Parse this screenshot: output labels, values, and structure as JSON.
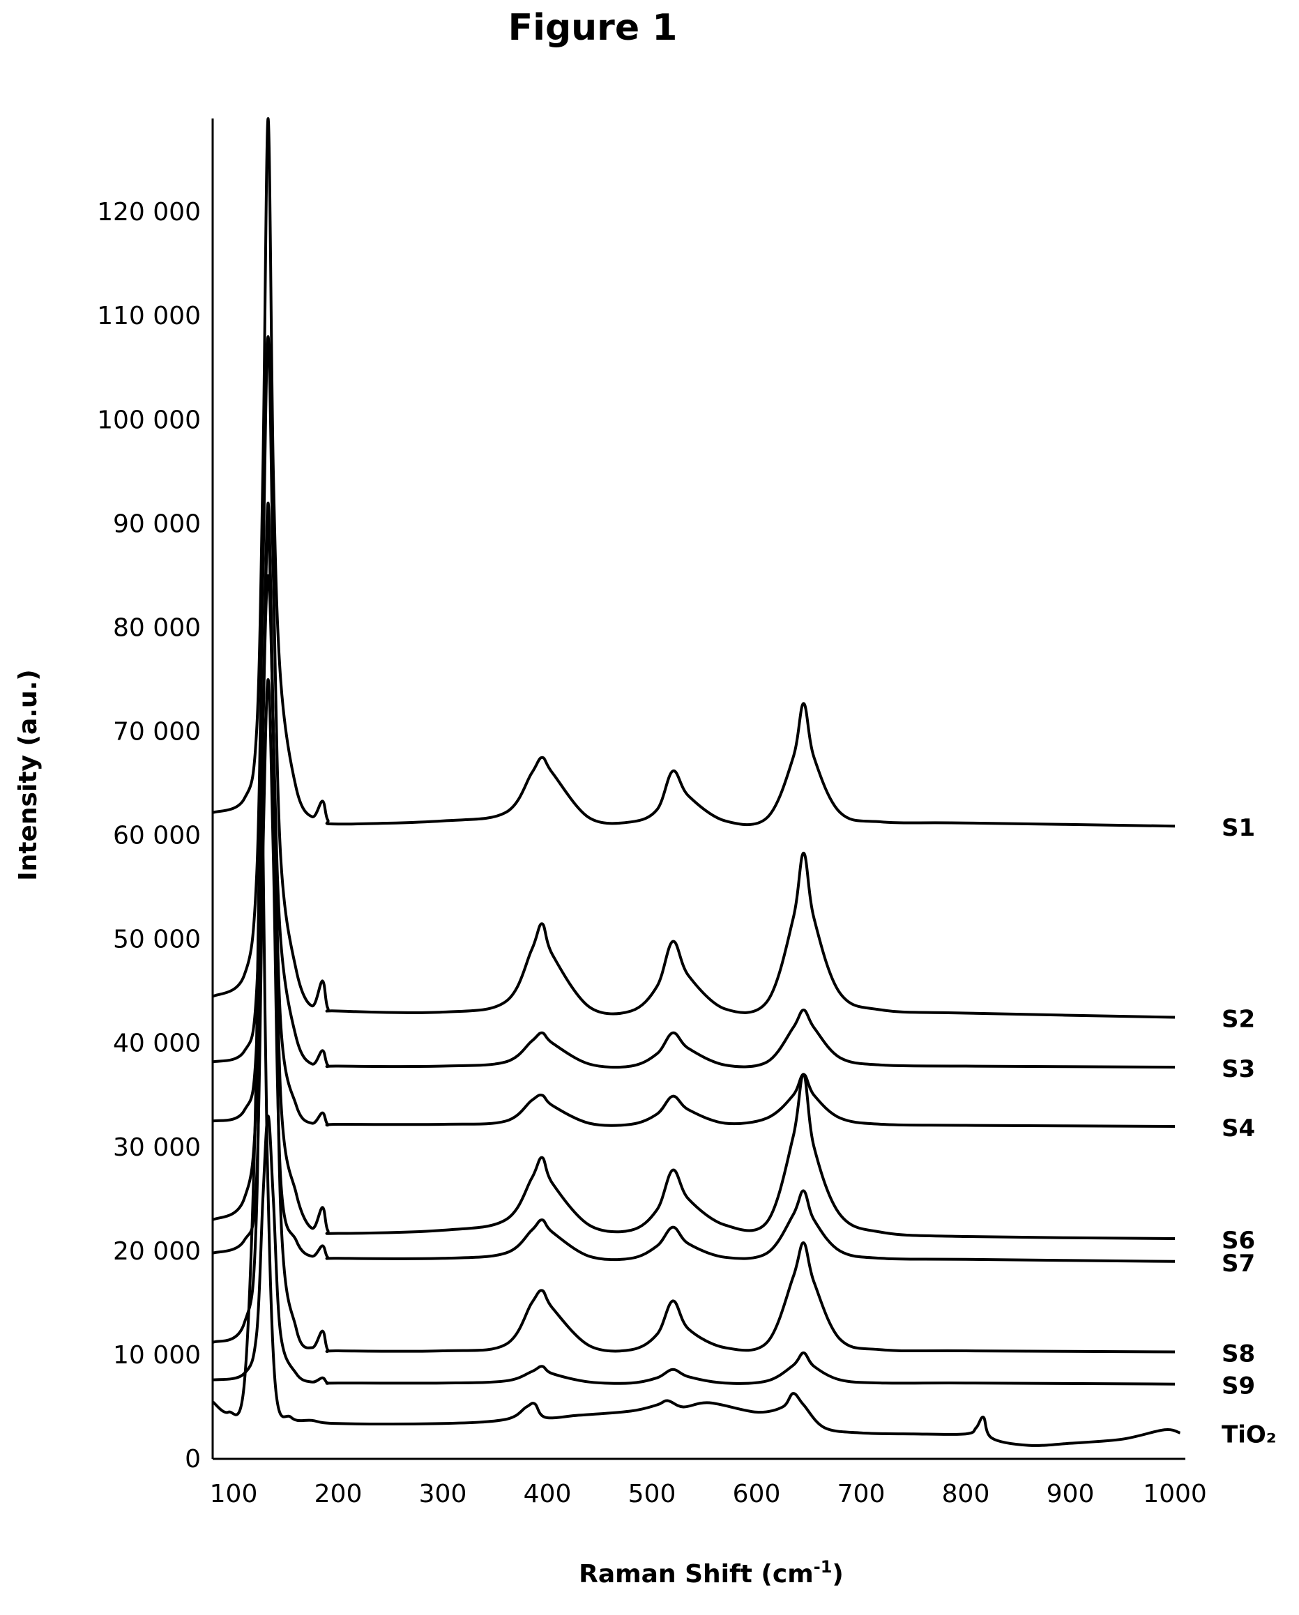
{
  "figure_title": "Figure 1",
  "chart_data": {
    "type": "line",
    "title": "Figure 1",
    "xlabel": "Raman Shift (cm",
    "xlabel_sup": "-1",
    "xlabel_end": ")",
    "ylabel": "Intensity (a.u.)",
    "xlim": [
      80,
      1010
    ],
    "ylim": [
      0,
      129000
    ],
    "x_ticks": [
      100,
      200,
      300,
      400,
      500,
      600,
      700,
      800,
      900,
      1000
    ],
    "x_tick_labels": [
      "100",
      "200",
      "300",
      "400",
      "500",
      "600",
      "700",
      "800",
      "900",
      "1000"
    ],
    "y_ticks": [
      0,
      10000,
      20000,
      30000,
      40000,
      50000,
      60000,
      70000,
      80000,
      90000,
      100000,
      110000,
      120000
    ],
    "y_tick_labels": [
      "0",
      "10 000",
      "20 000",
      "30 000",
      "40 000",
      "50 000",
      "60 000",
      "70 000",
      "80 000",
      "90 000",
      "100 000",
      "110 000",
      "120 000"
    ],
    "grid": false,
    "legend": "labels at right end of each trace",
    "line_color": "#000000",
    "series": [
      {
        "name": "S1",
        "x": [
          80,
          110,
          122,
          128,
          133,
          138,
          145,
          160,
          175,
          185,
          190,
          200,
          300,
          360,
          385,
          395,
          405,
          440,
          480,
          505,
          520,
          535,
          570,
          610,
          635,
          645,
          655,
          680,
          720,
          800,
          1000
        ],
        "y": [
          62200,
          63500,
          70000,
          95000,
          129000,
          95000,
          75000,
          64500,
          61800,
          63300,
          61500,
          61100,
          61400,
          62200,
          66000,
          67500,
          66000,
          61700,
          61300,
          62500,
          66200,
          63800,
          61400,
          61700,
          67500,
          72700,
          67500,
          62200,
          61300,
          61200,
          60900
        ]
      },
      {
        "name": "S2",
        "x": [
          80,
          110,
          122,
          128,
          133,
          138,
          145,
          160,
          175,
          185,
          190,
          200,
          300,
          360,
          385,
          395,
          405,
          440,
          480,
          505,
          520,
          535,
          570,
          610,
          635,
          645,
          655,
          680,
          720,
          800,
          1000
        ],
        "y": [
          44500,
          46500,
          56000,
          85000,
          108000,
          85000,
          58000,
          47000,
          43600,
          46000,
          43400,
          43100,
          43000,
          44000,
          49000,
          51500,
          48500,
          43500,
          43100,
          45500,
          49800,
          46500,
          43300,
          44000,
          52000,
          58300,
          52000,
          44800,
          43200,
          42900,
          42500
        ]
      },
      {
        "name": "S3",
        "x": [
          80,
          110,
          122,
          128,
          133,
          138,
          145,
          160,
          175,
          185,
          190,
          200,
          300,
          360,
          385,
          395,
          405,
          440,
          480,
          505,
          520,
          535,
          570,
          610,
          635,
          645,
          655,
          680,
          720,
          800,
          1000
        ],
        "y": [
          38200,
          39200,
          45000,
          70000,
          90000,
          70000,
          50000,
          40500,
          38000,
          39300,
          37900,
          37800,
          37800,
          38200,
          40200,
          41000,
          40000,
          38000,
          37800,
          39000,
          41000,
          39500,
          37900,
          38200,
          41500,
          43200,
          41500,
          38600,
          37900,
          37800,
          37700
        ]
      },
      {
        "name": "S4",
        "x": [
          80,
          110,
          122,
          128,
          133,
          138,
          145,
          160,
          175,
          185,
          190,
          200,
          300,
          360,
          385,
          395,
          405,
          440,
          480,
          505,
          520,
          535,
          570,
          610,
          635,
          645,
          655,
          680,
          720,
          800,
          1000
        ],
        "y": [
          32500,
          33500,
          40000,
          70000,
          92000,
          70000,
          42000,
          34000,
          32300,
          33300,
          32200,
          32200,
          32200,
          32500,
          34500,
          35000,
          34000,
          32300,
          32200,
          33200,
          34900,
          33600,
          32300,
          32800,
          35000,
          37000,
          35000,
          32800,
          32200,
          32100,
          32000
        ]
      },
      {
        "name": "S6",
        "x": [
          80,
          110,
          122,
          128,
          133,
          138,
          145,
          160,
          175,
          185,
          190,
          200,
          300,
          360,
          385,
          395,
          405,
          440,
          480,
          505,
          520,
          535,
          570,
          610,
          635,
          645,
          655,
          680,
          720,
          800,
          1000
        ],
        "y": [
          23000,
          25000,
          35000,
          70000,
          85000,
          70000,
          35000,
          25500,
          22200,
          24200,
          22000,
          21700,
          22000,
          23000,
          27000,
          29000,
          26500,
          22500,
          22000,
          24000,
          27800,
          25000,
          22500,
          22800,
          31000,
          37000,
          30000,
          23500,
          21800,
          21400,
          21200
        ]
      },
      {
        "name": "S7",
        "x": [
          80,
          110,
          122,
          128,
          133,
          138,
          145,
          160,
          175,
          185,
          190,
          200,
          300,
          360,
          385,
          395,
          405,
          440,
          480,
          505,
          520,
          535,
          570,
          610,
          635,
          645,
          655,
          680,
          720,
          800,
          1000
        ],
        "y": [
          19800,
          21000,
          27000,
          58000,
          75000,
          58000,
          27000,
          21000,
          19500,
          20500,
          19400,
          19300,
          19300,
          19800,
          22000,
          23000,
          21800,
          19500,
          19300,
          20500,
          22300,
          20700,
          19400,
          19800,
          23500,
          25800,
          23000,
          20000,
          19300,
          19200,
          19000
        ]
      },
      {
        "name": "S8",
        "x": [
          80,
          110,
          122,
          128,
          133,
          138,
          145,
          160,
          175,
          185,
          190,
          200,
          300,
          360,
          385,
          395,
          405,
          440,
          480,
          505,
          520,
          535,
          570,
          610,
          635,
          645,
          655,
          680,
          720,
          800,
          1000
        ],
        "y": [
          11200,
          13000,
          24000,
          70000,
          90000,
          70000,
          24000,
          12500,
          10700,
          12300,
          10500,
          10400,
          10400,
          11000,
          15000,
          16200,
          14500,
          10900,
          10500,
          12000,
          15200,
          12500,
          10700,
          11200,
          17500,
          20800,
          17000,
          11500,
          10500,
          10400,
          10300
        ]
      },
      {
        "name": "S9",
        "x": [
          80,
          110,
          122,
          128,
          133,
          138,
          145,
          160,
          175,
          185,
          190,
          200,
          300,
          360,
          385,
          395,
          405,
          440,
          480,
          505,
          520,
          535,
          570,
          610,
          635,
          645,
          655,
          680,
          720,
          800,
          1000
        ],
        "y": [
          7600,
          8200,
          12000,
          25000,
          33000,
          25000,
          12000,
          8200,
          7400,
          7800,
          7300,
          7300,
          7300,
          7500,
          8400,
          8900,
          8200,
          7400,
          7300,
          7800,
          8600,
          7900,
          7300,
          7500,
          9000,
          10200,
          8900,
          7600,
          7300,
          7300,
          7200
        ]
      },
      {
        "name": "TiO₂",
        "x": [
          80,
          95,
          110,
          120,
          125,
          128,
          132,
          140,
          155,
          175,
          200,
          300,
          360,
          380,
          388,
          398,
          430,
          480,
          505,
          515,
          530,
          555,
          600,
          625,
          635,
          645,
          665,
          700,
          750,
          800,
          810,
          817,
          825,
          860,
          900,
          950,
          990,
          1005
        ],
        "y": [
          5500,
          4500,
          7000,
          30000,
          60000,
          60000,
          30000,
          7000,
          4000,
          3700,
          3400,
          3400,
          3800,
          5000,
          5300,
          4000,
          4200,
          4600,
          5200,
          5600,
          5000,
          5400,
          4500,
          5000,
          6300,
          5200,
          3000,
          2500,
          2400,
          2400,
          3000,
          4000,
          2000,
          1300,
          1500,
          1900,
          2800,
          2500
        ]
      }
    ]
  }
}
